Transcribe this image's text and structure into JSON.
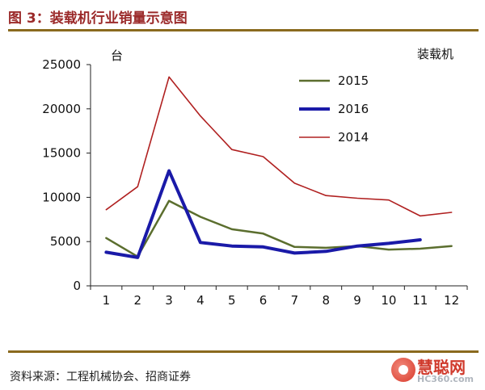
{
  "header": {
    "title": "图 3：装载机行业销量示意图"
  },
  "footer": {
    "source": "资料来源：工程机械协会、招商证券",
    "watermark_text": "慧聪网",
    "watermark_sub": "HC360.com"
  },
  "chart_data": {
    "type": "line",
    "title": "",
    "ylabel": "台",
    "annotation": "装载机",
    "x": [
      1,
      2,
      3,
      4,
      5,
      6,
      7,
      8,
      9,
      10,
      11,
      12
    ],
    "xticks": [
      "1",
      "2",
      "3",
      "4",
      "5",
      "6",
      "7",
      "8",
      "9",
      "10",
      "11",
      "12"
    ],
    "ylim": [
      0,
      25000
    ],
    "yticks": [
      0,
      5000,
      10000,
      15000,
      20000,
      25000
    ],
    "ytick_labels": [
      "0",
      "5000",
      "10000",
      "15000",
      "20000",
      "25000"
    ],
    "grid": false,
    "legend_position": "top-right",
    "series": [
      {
        "name": "2015",
        "color": "#5b6e2e",
        "width": 2.5,
        "values": [
          5400,
          3300,
          9600,
          7800,
          6400,
          5900,
          4400,
          4300,
          4500,
          4100,
          4200,
          4500
        ]
      },
      {
        "name": "2016",
        "color": "#1a1aa8",
        "width": 4,
        "values": [
          3800,
          3200,
          13000,
          4900,
          4500,
          4400,
          3700,
          3900,
          4500,
          4800,
          5200,
          null
        ]
      },
      {
        "name": "2014",
        "color": "#b02020",
        "width": 1.6,
        "values": [
          8600,
          11200,
          23600,
          19200,
          15400,
          14600,
          11600,
          10200,
          9900,
          9700,
          7900,
          8300
        ]
      }
    ]
  }
}
